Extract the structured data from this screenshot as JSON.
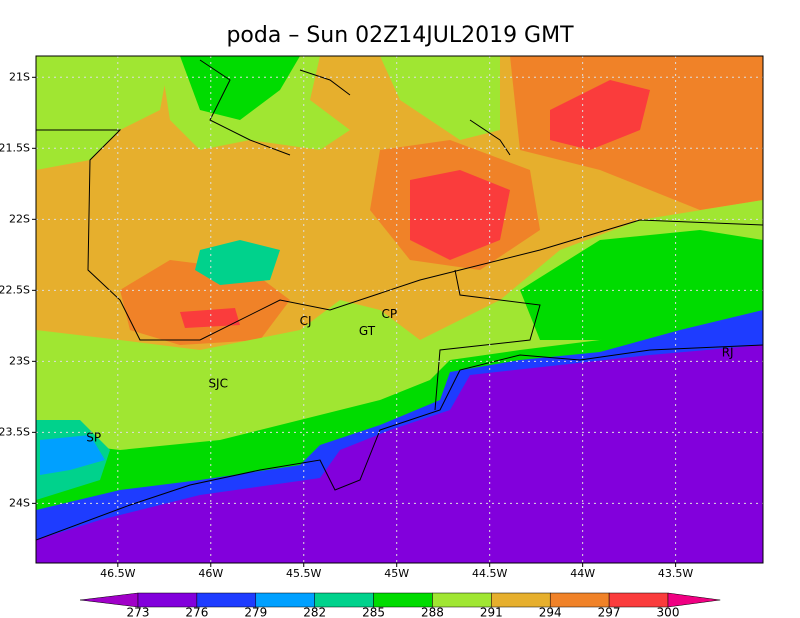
{
  "title": "poda – Sun 02Z14JUL2019 GMT",
  "map": {
    "xlim": [
      -46.94,
      -43.03
    ],
    "ylim": [
      -24.42,
      -20.85
    ],
    "lon_ticks": [
      {
        "value": -46.5,
        "label": "46.5W"
      },
      {
        "value": -46,
        "label": "46W"
      },
      {
        "value": -45.5,
        "label": "45.5W"
      },
      {
        "value": -45,
        "label": "45W"
      },
      {
        "value": -44.5,
        "label": "44.5W"
      },
      {
        "value": -44,
        "label": "44W"
      },
      {
        "value": -43.5,
        "label": "43.5W"
      }
    ],
    "lat_ticks": [
      {
        "value": -21,
        "label": "21S"
      },
      {
        "value": -21.5,
        "label": "21.5S"
      },
      {
        "value": -22,
        "label": "22S"
      },
      {
        "value": -22.5,
        "label": "22.5S"
      },
      {
        "value": -23,
        "label": "23S"
      },
      {
        "value": -23.5,
        "label": "23.5S"
      },
      {
        "value": -24,
        "label": "24S"
      }
    ],
    "places": [
      {
        "label": "SP",
        "lon": -46.63,
        "lat": -23.54
      },
      {
        "label": "SJC",
        "lon": -45.96,
        "lat": -23.16
      },
      {
        "label": "CJ",
        "lon": -45.49,
        "lat": -22.72
      },
      {
        "label": "CP",
        "lon": -45.04,
        "lat": -22.67
      },
      {
        "label": "GT",
        "lon": -45.16,
        "lat": -22.79
      },
      {
        "label": "RJ",
        "lon": -43.22,
        "lat": -22.94
      }
    ]
  },
  "colorbar": {
    "levels": [
      273,
      276,
      279,
      282,
      285,
      288,
      291,
      294,
      297,
      300
    ],
    "colors": [
      "#a000c8",
      "#8200dc",
      "#1e3cff",
      "#00a0ff",
      "#00d28c",
      "#00dc00",
      "#a0e632",
      "#e6af2d",
      "#f08228",
      "#fa3c3c",
      "#f00082"
    ]
  }
}
